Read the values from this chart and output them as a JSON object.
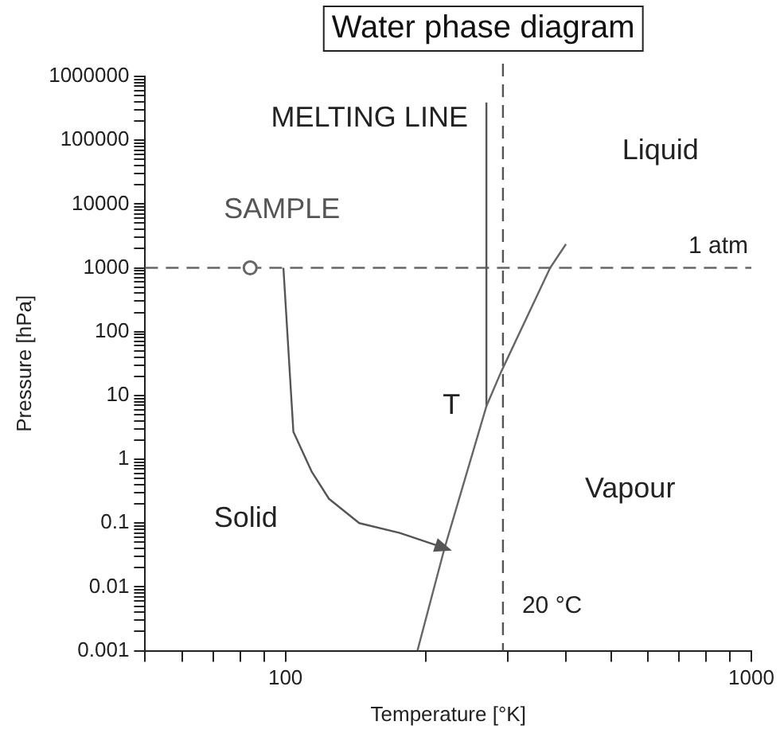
{
  "chart_data": {
    "type": "line",
    "title": "Water phase diagram",
    "xlabel": "Temperature [°K]",
    "ylabel": "Pressure [hPa]",
    "log": "xy",
    "grid": false,
    "legend": false,
    "xlim": [
      50,
      1000
    ],
    "ylim": [
      0.001,
      1000000
    ],
    "xticks": [
      {
        "value": 50,
        "label": null
      },
      {
        "value": 60,
        "label": null
      },
      {
        "value": 70,
        "label": null
      },
      {
        "value": 80,
        "label": null
      },
      {
        "value": 90,
        "label": null
      },
      100,
      {
        "value": 200,
        "label": null
      },
      {
        "value": 300,
        "label": null
      },
      {
        "value": 400,
        "label": null
      },
      {
        "value": 500,
        "label": null
      },
      {
        "value": 600,
        "label": null
      },
      {
        "value": 700,
        "label": null
      },
      {
        "value": 800,
        "label": null
      },
      {
        "value": 900,
        "label": null
      },
      1000
    ],
    "yticks": [
      0.001,
      {
        "value": 0.002,
        "label": null
      },
      {
        "value": 0.003,
        "label": null
      },
      {
        "value": 0.004,
        "label": null
      },
      {
        "value": 0.005,
        "label": null
      },
      {
        "value": 0.006,
        "label": null
      },
      {
        "value": 0.007,
        "label": null
      },
      {
        "value": 0.008,
        "label": null
      },
      {
        "value": 0.009,
        "label": null
      },
      0.01,
      {
        "value": 0.02,
        "label": null
      },
      {
        "value": 0.03,
        "label": null
      },
      {
        "value": 0.04,
        "label": null
      },
      {
        "value": 0.05,
        "label": null
      },
      {
        "value": 0.06,
        "label": null
      },
      {
        "value": 0.07,
        "label": null
      },
      {
        "value": 0.08,
        "label": null
      },
      {
        "value": 0.09,
        "label": null
      },
      0.1,
      {
        "value": 0.2,
        "label": null
      },
      {
        "value": 0.3,
        "label": null
      },
      {
        "value": 0.4,
        "label": null
      },
      {
        "value": 0.5,
        "label": null
      },
      {
        "value": 0.6,
        "label": null
      },
      {
        "value": 0.7,
        "label": null
      },
      {
        "value": 0.8,
        "label": null
      },
      {
        "value": 0.9,
        "label": null
      },
      1,
      {
        "value": 2,
        "label": null
      },
      {
        "value": 3,
        "label": null
      },
      {
        "value": 4,
        "label": null
      },
      {
        "value": 5,
        "label": null
      },
      {
        "value": 6,
        "label": null
      },
      {
        "value": 7,
        "label": null
      },
      {
        "value": 8,
        "label": null
      },
      {
        "value": 9,
        "label": null
      },
      10,
      {
        "value": 20,
        "label": null
      },
      {
        "value": 30,
        "label": null
      },
      {
        "value": 40,
        "label": null
      },
      {
        "value": 50,
        "label": null
      },
      {
        "value": 60,
        "label": null
      },
      {
        "value": 70,
        "label": null
      },
      {
        "value": 80,
        "label": null
      },
      {
        "value": 90,
        "label": null
      },
      100,
      {
        "value": 200,
        "label": null
      },
      {
        "value": 300,
        "label": null
      },
      {
        "value": 400,
        "label": null
      },
      {
        "value": 500,
        "label": null
      },
      {
        "value": 600,
        "label": null
      },
      {
        "value": 700,
        "label": null
      },
      {
        "value": 800,
        "label": null
      },
      {
        "value": 900,
        "label": null
      },
      1000,
      {
        "value": 2000,
        "label": null
      },
      {
        "value": 3000,
        "label": null
      },
      {
        "value": 4000,
        "label": null
      },
      {
        "value": 5000,
        "label": null
      },
      {
        "value": 6000,
        "label": null
      },
      {
        "value": 7000,
        "label": null
      },
      {
        "value": 8000,
        "label": null
      },
      {
        "value": 9000,
        "label": null
      },
      10000,
      {
        "value": 20000,
        "label": null
      },
      {
        "value": 30000,
        "label": null
      },
      {
        "value": 40000,
        "label": null
      },
      {
        "value": 50000,
        "label": null
      },
      {
        "value": 60000,
        "label": null
      },
      {
        "value": 70000,
        "label": null
      },
      {
        "value": 80000,
        "label": null
      },
      {
        "value": 90000,
        "label": null
      },
      100000,
      {
        "value": 200000,
        "label": null
      },
      {
        "value": 300000,
        "label": null
      },
      {
        "value": 400000,
        "label": null
      },
      {
        "value": 500000,
        "label": null
      },
      {
        "value": 600000,
        "label": null
      },
      {
        "value": 700000,
        "label": null
      },
      {
        "value": 800000,
        "label": null
      },
      {
        "value": 900000,
        "label": null
      },
      1000000
    ],
    "series": [
      {
        "color": "#666666",
        "marker": "none",
        "x": [
          192,
          219,
          270,
          290,
          370,
          400
        ],
        "values": [
          0.001,
          0.038,
          6.8,
          23,
          1000,
          2350
        ]
      },
      {
        "color": "#555555",
        "marker": "none",
        "x": [
          270,
          270
        ],
        "values": [
          6.8,
          390000
        ]
      },
      {
        "type": "scatter",
        "color": "#666666",
        "marker": "circle",
        "x": [
          84
        ],
        "values": [
          1000
        ]
      }
    ],
    "ref_lines": [
      {
        "axis": "y",
        "value": 1000,
        "label": "1 atm",
        "color": "#666666",
        "line_style": "dashed"
      },
      {
        "axis": "x",
        "value": 293,
        "label": "20 °C",
        "color": "#555555",
        "line_style": "dashed"
      }
    ],
    "annotations": [
      "MELTING LINE",
      "Liquid",
      "Solid",
      "Vapour",
      {
        "text": "SAMPLE",
        "x": 84,
        "y": 1000
      },
      {
        "text": "T",
        "x": 270,
        "y": 6.8
      }
    ]
  }
}
